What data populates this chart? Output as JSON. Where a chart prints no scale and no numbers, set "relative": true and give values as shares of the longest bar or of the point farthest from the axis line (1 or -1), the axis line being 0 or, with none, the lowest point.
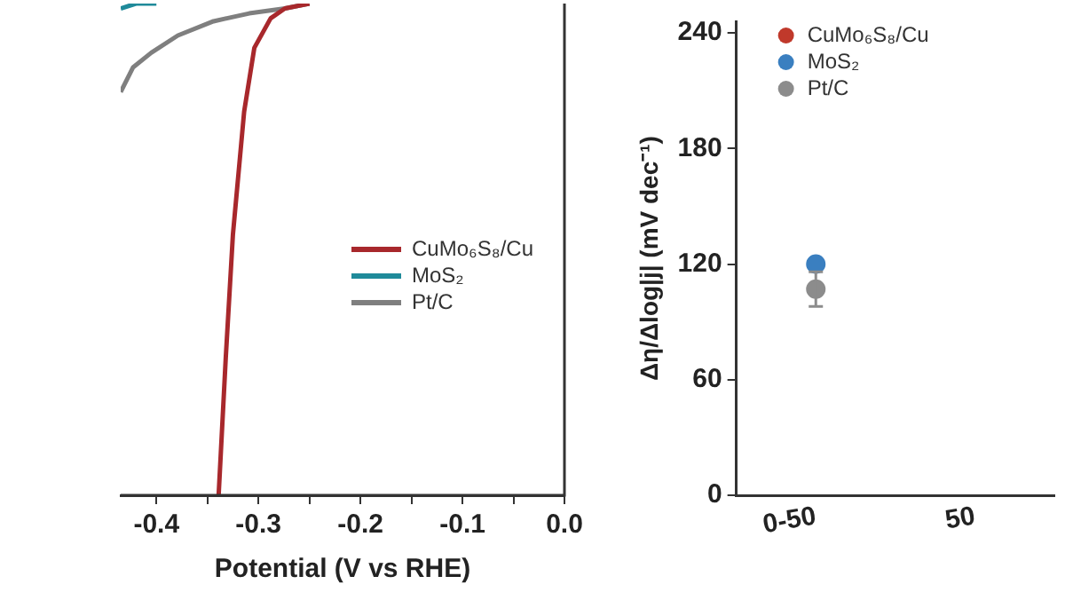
{
  "chart_data": [
    {
      "type": "line",
      "xlabel": "Potential (V vs RHE)",
      "relative": true,
      "xlim": [
        -0.435,
        0
      ],
      "xticks": [
        -0.4,
        {
          "value": -0.35,
          "label": null
        },
        -0.3,
        {
          "value": -0.25,
          "label": null
        },
        -0.2,
        {
          "value": -0.15,
          "label": null
        },
        -0.1,
        {
          "value": -0.05,
          "label": null
        },
        {
          "value": 0,
          "label": "0.0"
        }
      ],
      "grid": false,
      "legend": "right",
      "marker": "none",
      "line_style": "solid",
      "series": [
        {
          "name": "CuMo₆S₈/Cu",
          "color": "#a8282c",
          "x": [
            -0.339,
            -0.332,
            -0.325,
            -0.314,
            -0.304,
            -0.288,
            -0.274,
            -0.25
          ],
          "values": [
            0,
            0.28,
            0.53,
            0.78,
            0.91,
            0.97,
            0.99,
            1
          ]
        },
        {
          "name": "MoS₂",
          "color": "#1f8a9a",
          "x": [
            -0.435,
            -0.42,
            -0.4
          ],
          "values": [
            0.99,
            1,
            1
          ]
        },
        {
          "name": "Pt/C",
          "color": "#7f7f7f",
          "x": [
            -0.435,
            -0.423,
            -0.405,
            -0.379,
            -0.344,
            -0.309,
            -0.274,
            -0.25
          ],
          "values": [
            0.82,
            0.87,
            0.9,
            0.935,
            0.964,
            0.98,
            0.99,
            1
          ]
        }
      ]
    },
    {
      "type": "scatter",
      "ylabel": "Δη/Δlog|j| (mV dec⁻¹)",
      "categories": [
        "0-50",
        "50"
      ],
      "ylim": [
        0,
        246
      ],
      "yticks": [
        0,
        60,
        120,
        180,
        240
      ],
      "grid": false,
      "legend": "top left",
      "marker": "circle",
      "series": [
        {
          "name": "CuMo₆S₈/Cu",
          "color": "#c0392b",
          "values": [
            null,
            null
          ]
        },
        {
          "name": "MoS₂",
          "color": "#3a7fc0",
          "values": [
            120,
            null
          ]
        },
        {
          "name": "Pt/C",
          "color": "#8c8c8c",
          "values": [
            107,
            null
          ],
          "errors": [
            9,
            null
          ]
        }
      ]
    }
  ]
}
